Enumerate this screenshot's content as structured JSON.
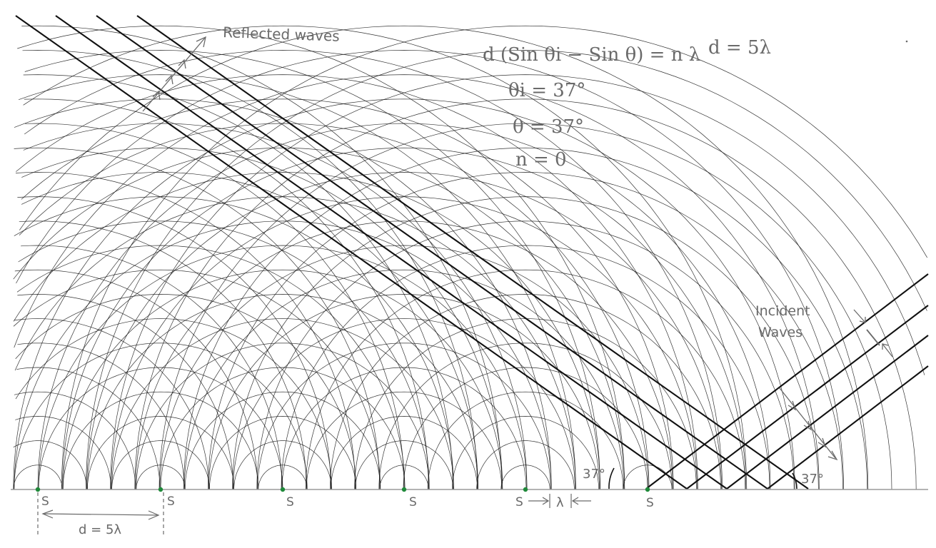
{
  "labels": {
    "reflected": "Reflected waves",
    "incident_line1": "Incident",
    "incident_line2": "Waves",
    "source": "S",
    "spacing": "d = 5λ",
    "wavelength": "λ",
    "angle_left": "37°",
    "angle_right": "37°"
  },
  "equations": {
    "grating": "d (Sin θi − Sin θ) = n λ",
    "d_value": "d = 5λ",
    "theta_i": "θi = 37°",
    "theta": "θ = 37°",
    "n": "n = 0"
  },
  "physics": {
    "angle_deg": 37,
    "source_spacing_in_wavelengths": 5,
    "order": 0,
    "source_count": 6
  },
  "colors": {
    "ink": "#111111",
    "pencil": "#6a6a6a",
    "surface": "#9a9a9a",
    "source_dot": "#1f8a3a"
  }
}
